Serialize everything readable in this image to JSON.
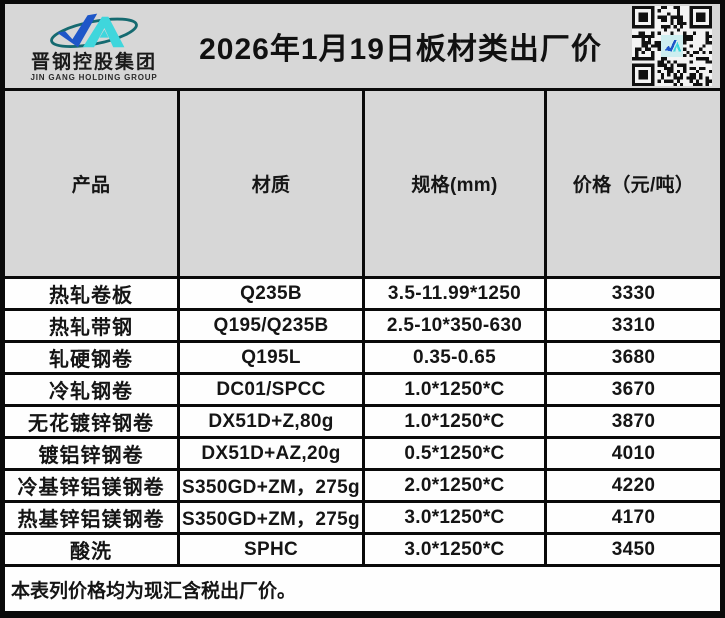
{
  "header": {
    "logo_cn": "晋钢控股集团",
    "logo_en": "JIN GANG HOLDING GROUP",
    "title": "2026年1月19日板材类出厂价"
  },
  "icons": {
    "company_logo": "jingang-swoosh-logo",
    "qr": "qr-code"
  },
  "colors": {
    "band_gray": "#d7d7d7",
    "border_black": "#0a0a0a",
    "cell_white": "#fefefe",
    "logo_blue": "#1e56c8",
    "logo_cyan": "#3fd6dc",
    "logo_teal": "#156a70"
  },
  "table": {
    "columns": [
      "产品",
      "材质",
      "规格(mm)",
      "价格（元/吨）"
    ],
    "rows": [
      [
        "热轧卷板",
        "Q235B",
        "3.5-11.99*1250",
        "3330"
      ],
      [
        "热轧带钢",
        "Q195/Q235B",
        "2.5-10*350-630",
        "3310"
      ],
      [
        "轧硬钢卷",
        "Q195L",
        "0.35-0.65",
        "3680"
      ],
      [
        "冷轧钢卷",
        "DC01/SPCC",
        "1.0*1250*C",
        "3670"
      ],
      [
        "无花镀锌钢卷",
        "DX51D+Z,80g",
        "1.0*1250*C",
        "3870"
      ],
      [
        "镀铝锌钢卷",
        "DX51D+AZ,20g",
        "0.5*1250*C",
        "4010"
      ],
      [
        "冷基锌铝镁钢卷",
        "S350GD+ZM，275g",
        "2.0*1250*C",
        "4220"
      ],
      [
        "热基锌铝镁钢卷",
        "S350GD+ZM，275g",
        "3.0*1250*C",
        "4170"
      ],
      [
        "酸洗",
        "SPHC",
        "3.0*1250*C",
        "3450"
      ]
    ],
    "footer_note": "本表列价格均为现汇含税出厂价。"
  }
}
